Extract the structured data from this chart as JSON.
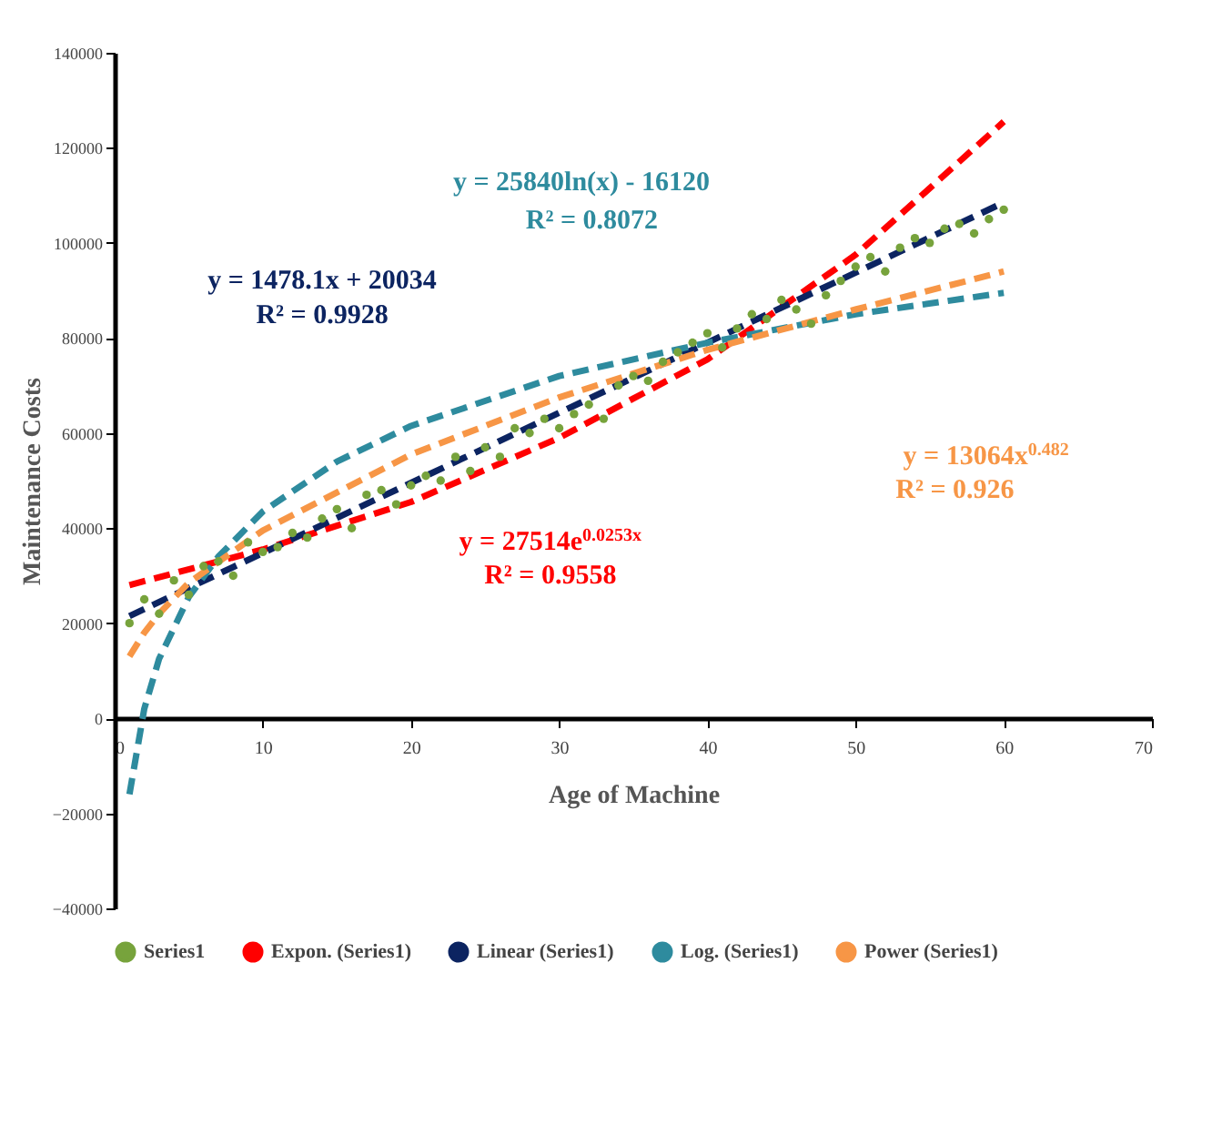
{
  "chart_data": {
    "type": "scatter",
    "xlabel": "Age of Machine",
    "ylabel": "Maintenance Costs",
    "xlim": [
      0,
      70
    ],
    "xticks": [
      0,
      10,
      20,
      30,
      40,
      50,
      60,
      70
    ],
    "ylim": [
      -40000,
      140000
    ],
    "yticks": [
      -40000,
      -20000,
      0,
      20000,
      40000,
      60000,
      80000,
      100000,
      120000,
      140000
    ],
    "grid": false,
    "legend": "bottom",
    "marker": "circle",
    "series": [
      {
        "name": "Series1",
        "color": "#77a33c",
        "x": [
          1,
          2,
          3,
          4,
          5,
          6,
          7,
          8,
          9,
          10,
          11,
          12,
          13,
          14,
          15,
          16,
          17,
          18,
          19,
          20,
          21,
          22,
          23,
          24,
          25,
          26,
          27,
          28,
          29,
          30,
          31,
          32,
          33,
          34,
          35,
          36,
          37,
          38,
          39,
          40,
          41,
          42,
          43,
          44,
          45,
          46,
          47,
          48,
          49,
          50,
          51,
          52,
          53,
          54,
          55,
          56,
          57,
          58,
          59,
          60
        ],
        "values": [
          20000,
          25000,
          22000,
          29000,
          26000,
          32000,
          33000,
          30000,
          37000,
          35000,
          36000,
          39000,
          38000,
          42000,
          44000,
          40000,
          47000,
          48000,
          45000,
          49000,
          51000,
          50000,
          55000,
          52000,
          57000,
          55000,
          61000,
          60000,
          63000,
          61000,
          64000,
          66000,
          63000,
          70000,
          72000,
          71000,
          75000,
          77000,
          79000,
          81000,
          78000,
          82000,
          85000,
          84000,
          88000,
          86000,
          83000,
          89000,
          92000,
          95000,
          97000,
          94000,
          99000,
          101000,
          100000,
          103000,
          104000,
          102000,
          105000,
          107000
        ]
      },
      {
        "name": "Expon. (Series1)",
        "type": "line",
        "marker": "none",
        "line_style": "dashed",
        "color": "#ff0000",
        "x": [
          1,
          10,
          20,
          30,
          40,
          50,
          60
        ],
        "values": [
          28000,
          35500,
          45500,
          59000,
          75500,
          97500,
          125500
        ]
      },
      {
        "name": "Linear (Series1)",
        "type": "line",
        "marker": "none",
        "line_style": "dashed",
        "color": "#0c2461",
        "x": [
          1,
          60
        ],
        "values": [
          21500,
          108500
        ]
      },
      {
        "name": "Log. (Series1)",
        "type": "line",
        "marker": "none",
        "line_style": "dashed",
        "color": "#2e8b9e",
        "x": [
          1,
          2,
          3,
          5,
          7,
          10,
          15,
          20,
          30,
          40,
          50,
          60
        ],
        "values": [
          -16000,
          2000,
          12500,
          25500,
          34000,
          43500,
          54000,
          61500,
          72000,
          79000,
          85000,
          89500
        ]
      },
      {
        "name": "Power (Series1)",
        "type": "line",
        "marker": "none",
        "line_style": "dashed",
        "color": "#f79646",
        "x": [
          1,
          2,
          3,
          5,
          10,
          20,
          30,
          40,
          50,
          60
        ],
        "values": [
          13000,
          18000,
          22000,
          28500,
          39500,
          55500,
          67500,
          77500,
          86000,
          94000
        ]
      }
    ],
    "annotations": [
      "y = 27514e$^{0.0253x}$",
      "R² = 0.9558",
      "y = 1478.1x + 20034",
      "R² = 0.9928",
      "y = 25840ln(x) - 16120",
      "R² = 0.8072",
      "y = 13064x$^{0.482}$",
      "R² = 0.926"
    ]
  }
}
